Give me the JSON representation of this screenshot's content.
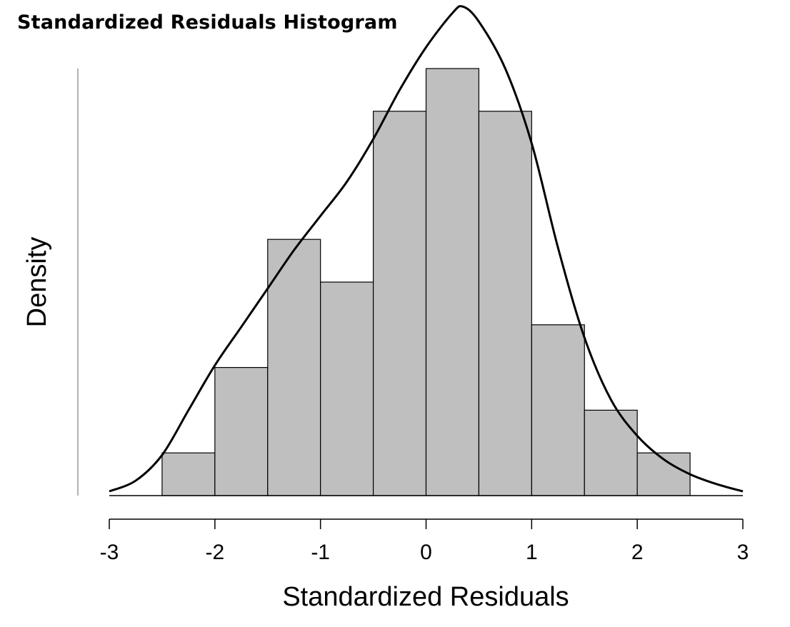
{
  "chart_data": {
    "type": "bar",
    "title": "Standardized Residuals Histogram",
    "xlabel": "Standardized Residuals",
    "ylabel": "Density",
    "xlim": [
      -3,
      3
    ],
    "x_ticks": [
      "-3",
      "-2",
      "-1",
      "0",
      "1",
      "2",
      "3"
    ],
    "bin_edges": [
      -2.5,
      -2.0,
      -1.5,
      -1.0,
      -0.5,
      0.0,
      0.5,
      1.0,
      1.5,
      2.0,
      2.5
    ],
    "counts": [
      1,
      3,
      6,
      5,
      9,
      10,
      9,
      4,
      2,
      1
    ],
    "density_curve": {
      "x": [
        -3.0,
        -2.75,
        -2.5,
        -2.25,
        -2.0,
        -1.75,
        -1.5,
        -1.25,
        -1.0,
        -0.75,
        -0.5,
        -0.25,
        0.0,
        0.25,
        0.35,
        0.5,
        0.75,
        1.0,
        1.25,
        1.5,
        1.75,
        2.0,
        2.25,
        2.5,
        2.75,
        3.0
      ],
      "y": [
        0.1,
        0.35,
        0.95,
        2.0,
        3.05,
        3.95,
        4.85,
        5.75,
        6.55,
        7.35,
        8.35,
        9.5,
        10.5,
        11.3,
        11.45,
        11.1,
        10.0,
        8.25,
        5.8,
        3.7,
        2.25,
        1.4,
        0.85,
        0.5,
        0.27,
        0.1
      ]
    },
    "colors": {
      "bar_fill": "#bfbfbf",
      "bar_stroke": "#000000",
      "curve": "#000000"
    },
    "grid": false,
    "y_ticks_shown": false
  }
}
